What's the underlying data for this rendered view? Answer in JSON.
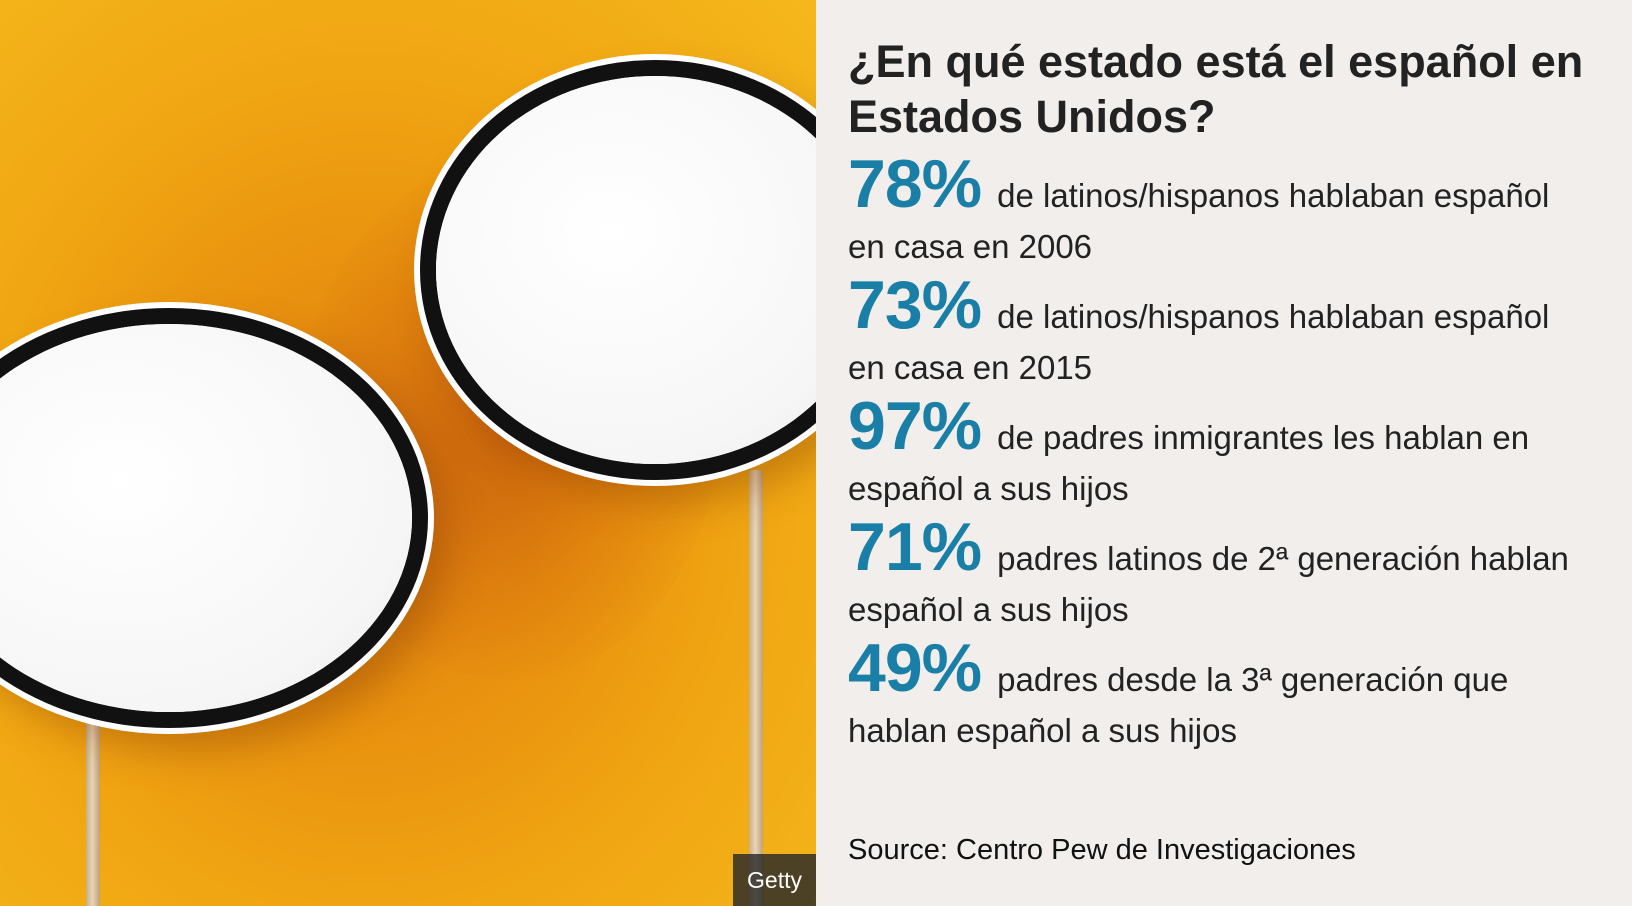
{
  "photo": {
    "credit": "Getty",
    "description_icon": "speech-bubble-icon"
  },
  "title": "¿En qué estado está el español en Estados Unidos?",
  "accent_color": "#1a7fa6",
  "stats": [
    {
      "value": "78%",
      "text": "de latinos/hispanos hablaban español en casa en 2006"
    },
    {
      "value": "73%",
      "text": "de latinos/hispanos hablaban español en casa en 2015"
    },
    {
      "value": "97%",
      "text": "de padres inmigrantes les hablan en español a sus hijos"
    },
    {
      "value": "71%",
      "text": "padres latinos de 2ª generación hablan español a sus hijos"
    },
    {
      "value": "49%",
      "text": "padres desde la 3ª generación que hablan español a sus hijos"
    }
  ],
  "source": "Source: Centro Pew de Investigaciones"
}
